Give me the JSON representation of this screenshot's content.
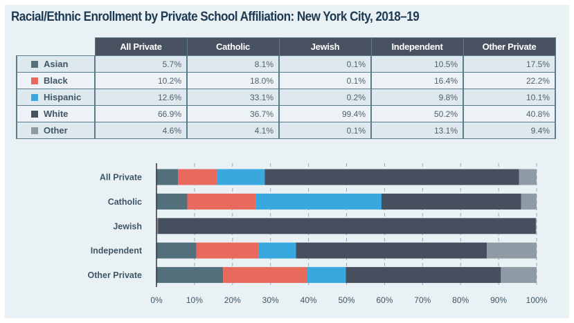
{
  "title": "Racial/Ethnic Enrollment by Private School Affiliation: New York City, 2018–19",
  "table": {
    "columns": [
      "All Private",
      "Catholic",
      "Jewish",
      "Independent",
      "Other Private"
    ],
    "rows": [
      {
        "label": "Asian",
        "color": "#526f7c",
        "values": [
          "5.7%",
          "8.1%",
          "0.1%",
          "10.5%",
          "17.5%"
        ]
      },
      {
        "label": "Black",
        "color": "#e76a5c",
        "values": [
          "10.2%",
          "18.0%",
          "0.1%",
          "16.4%",
          "22.2%"
        ]
      },
      {
        "label": "Hispanic",
        "color": "#38a8de",
        "values": [
          "12.6%",
          "33.1%",
          "0.2%",
          "9.8%",
          "10.1%"
        ]
      },
      {
        "label": "White",
        "color": "#464f5d",
        "values": [
          "66.9%",
          "36.7%",
          "99.4%",
          "50.2%",
          "40.8%"
        ]
      },
      {
        "label": "Other",
        "color": "#8e9ba4",
        "values": [
          "4.6%",
          "4.1%",
          "0.1%",
          "13.1%",
          "9.4%"
        ]
      }
    ]
  },
  "chart_data": {
    "type": "bar",
    "orientation": "horizontal",
    "stacked": true,
    "title": "Racial/Ethnic Enrollment by Private School Affiliation: New York City, 2018–19",
    "categories": [
      "All Private",
      "Catholic",
      "Jewish",
      "Independent",
      "Other Private"
    ],
    "series": [
      {
        "name": "Asian",
        "color": "#526f7c",
        "values": [
          5.7,
          8.1,
          0.1,
          10.5,
          17.5
        ]
      },
      {
        "name": "Black",
        "color": "#e76a5c",
        "values": [
          10.2,
          18.0,
          0.1,
          16.4,
          22.2
        ]
      },
      {
        "name": "Hispanic",
        "color": "#38a8de",
        "values": [
          12.6,
          33.1,
          0.2,
          9.8,
          10.1
        ]
      },
      {
        "name": "White",
        "color": "#464f5d",
        "values": [
          66.9,
          36.7,
          99.4,
          50.2,
          40.8
        ]
      },
      {
        "name": "Other",
        "color": "#8e9ba4",
        "values": [
          4.6,
          4.1,
          0.1,
          13.1,
          9.4
        ]
      }
    ],
    "xlim": [
      0,
      100
    ],
    "xticks": [
      "0%",
      "10%",
      "20%",
      "30%",
      "40%",
      "50%",
      "60%",
      "70%",
      "80%",
      "90%",
      "100%"
    ],
    "xlabel": "",
    "ylabel": "",
    "grid": true,
    "legend": "table-left"
  }
}
